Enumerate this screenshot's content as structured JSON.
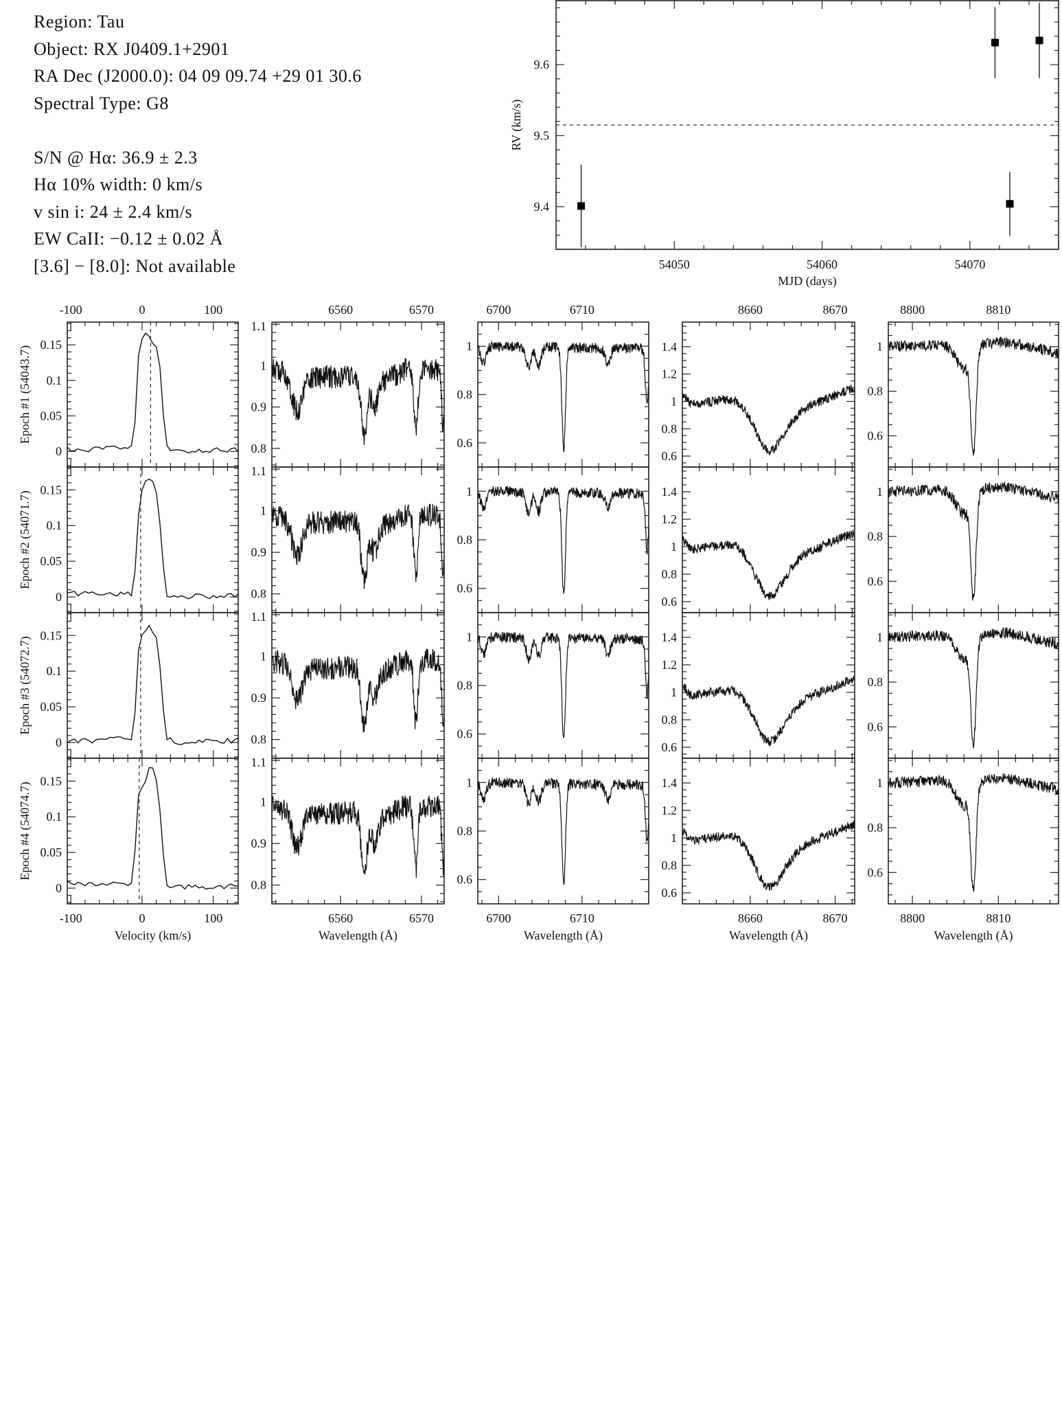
{
  "info": {
    "region": "Region: Tau",
    "object": "Object: RX J0409.1+2901",
    "radec": "RA Dec (J2000.0): 04 09 09.74 +29 01 30.6",
    "sptype": "Spectral Type: G8",
    "sn": "S/N @ Hα: 36.9 ± 2.3",
    "ha_width": "Hα 10% width: 0 km/s",
    "vsini": "v sin i: 24 ± 2.4 km/s",
    "ew_ca": "EW CaII: −0.12 ± 0.02 Å",
    "irac": "[3.6] − [8.0]: Not available"
  },
  "chart_data": [
    {
      "type": "scatter",
      "xlabel": "MJD (days)",
      "ylabel": "RV (km/s)",
      "xlim": [
        54042,
        54076
      ],
      "ylim": [
        9.34,
        9.69
      ],
      "xticks": [
        54050,
        54060,
        54070
      ],
      "yticks": [
        9.4,
        9.5,
        9.6
      ],
      "mean_line": 9.515,
      "points": [
        {
          "x": 54043.7,
          "y": 9.401,
          "yerr": 0.058
        },
        {
          "x": 54071.7,
          "y": 9.631,
          "yerr": 0.05
        },
        {
          "x": 54072.7,
          "y": 9.404,
          "yerr": 0.045
        },
        {
          "x": 54074.7,
          "y": 9.634,
          "yerr": 0.053
        }
      ],
      "grid": false
    },
    {
      "type": "line",
      "panel_grid": "4 epochs x 5 spectral windows",
      "epochs": [
        "Epoch #1 (54043.7)",
        "Epoch #2 (54071.7)",
        "Epoch #3 (54072.7)",
        "Epoch #4 (54074.7)"
      ],
      "columns": [
        {
          "xlabel": "Velocity (km/s)",
          "xlim": [
            -105,
            135
          ],
          "ylim": [
            -0.022,
            0.182
          ],
          "xticks": [
            -100,
            0,
            100
          ],
          "yticks": [
            0,
            0.05,
            0.1,
            0.15
          ],
          "rv_markers": [
            12,
            -2,
            -2,
            -4
          ],
          "profiles": [
            [
              [
                -105,
                0.003
              ],
              [
                -95,
                0.001
              ],
              [
                -15,
                0.006
              ],
              [
                -12,
                0.003
              ],
              [
                -5,
                0.135
              ],
              [
                2,
                0.168
              ],
              [
                8,
                0.165
              ],
              [
                13,
                0.157
              ],
              [
                17,
                0.147
              ],
              [
                23,
                0.147
              ],
              [
                33,
                0.008
              ],
              [
                40,
                0
              ],
              [
                135,
                0.003
              ]
            ],
            [
              [
                -105,
                0.005
              ],
              [
                -12,
                0.004
              ],
              [
                -4,
                0.13
              ],
              [
                2,
                0.16
              ],
              [
                8,
                0.165
              ],
              [
                14,
                0.165
              ],
              [
                22,
                0.14
              ],
              [
                33,
                0.005
              ],
              [
                45,
                0
              ],
              [
                135,
                0.002
              ]
            ],
            [
              [
                -105,
                0.001
              ],
              [
                -12,
                0.006
              ],
              [
                -4,
                0.147
              ],
              [
                4,
                0.155
              ],
              [
                10,
                0.164
              ],
              [
                17,
                0.15
              ],
              [
                22,
                0.145
              ],
              [
                33,
                0.007
              ],
              [
                45,
                0
              ],
              [
                135,
                0.003
              ]
            ],
            [
              [
                -105,
                0.008
              ],
              [
                -13,
                0.004
              ],
              [
                -4,
                0.147
              ],
              [
                2,
                0.138
              ],
              [
                10,
                0.169
              ],
              [
                17,
                0.168
              ],
              [
                22,
                0.14
              ],
              [
                27,
                0.09
              ],
              [
                33,
                0.001
              ],
              [
                135,
                0.003
              ]
            ]
          ]
        },
        {
          "xlabel": "Wavelength (Å)",
          "xlim": [
            6551.5,
            6572.8
          ],
          "ylim": [
            0.755,
            1.105
          ],
          "xticks": [
            6560,
            6570
          ],
          "yticks": [
            0.8,
            0.9,
            1,
            1.1
          ],
          "continuum": [
            [
              6551.5,
              0.99
            ],
            [
              6556,
              0.97
            ],
            [
              6562,
              0.975
            ],
            [
              6564,
              0.95
            ],
            [
              6568,
              0.99
            ],
            [
              6572.8,
              0.99
            ]
          ],
          "lines": [
            {
              "center": 6554.6,
              "min": 0.89,
              "width": 0.6
            },
            {
              "center": 6562.9,
              "min": 0.83,
              "width": 0.35
            },
            {
              "center": 6564.2,
              "min": 0.9,
              "width": 0.4
            },
            {
              "center": 6569.3,
              "min": 0.84,
              "width": 0.25
            },
            {
              "center": 6572.7,
              "min": 0.85,
              "width": 0.2
            }
          ],
          "noise": 0.028
        },
        {
          "xlabel": "Wavelength (Å)",
          "xlim": [
            6697.5,
            6718
          ],
          "ylim": [
            0.5,
            1.1
          ],
          "xticks": [
            6700,
            6710
          ],
          "yticks": [
            0.6,
            0.8,
            1
          ],
          "continuum": [
            [
              6697.5,
              1.0
            ],
            [
              6718,
              0.99
            ]
          ],
          "lines": [
            {
              "center": 6698.2,
              "min": 0.93,
              "width": 0.3
            },
            {
              "center": 6703.6,
              "min": 0.91,
              "width": 0.3
            },
            {
              "center": 6704.8,
              "min": 0.92,
              "width": 0.3
            },
            {
              "center": 6707.8,
              "min": 0.58,
              "width": 0.22
            },
            {
              "center": 6713.1,
              "min": 0.93,
              "width": 0.3
            },
            {
              "center": 6717.8,
              "min": 0.76,
              "width": 0.2
            }
          ],
          "noise": 0.022
        },
        {
          "xlabel": "Wavelength (Å)",
          "xlim": [
            8652,
            8672.3
          ],
          "ylim": [
            0.52,
            1.58
          ],
          "xticks": [
            8660,
            8670
          ],
          "yticks": [
            0.6,
            0.8,
            1,
            1.2,
            1.4
          ],
          "continuum": [
            [
              8652,
              1.05
            ],
            [
              8653,
              0.98
            ],
            [
              8658,
              1.02
            ],
            [
              8665,
              0.92
            ],
            [
              8672.3,
              1.1
            ]
          ],
          "lines": [
            {
              "center": 8662.2,
              "min": 0.64,
              "width": 1.6
            }
          ],
          "noise": 0.035
        },
        {
          "xlabel": "Wavelength (Å)",
          "xlim": [
            8797.2,
            8817
          ],
          "ylim": [
            0.46,
            1.11
          ],
          "xticks": [
            8800,
            8810
          ],
          "yticks": [
            0.6,
            0.8,
            1
          ],
          "continuum": [
            [
              8797.2,
              1.0
            ],
            [
              8811,
              1.02
            ],
            [
              8817,
              0.97
            ]
          ],
          "lines": [
            {
              "center": 8806.0,
              "min": 0.9,
              "width": 0.9
            },
            {
              "center": 8807.1,
              "min": 0.57,
              "width": 0.3
            }
          ],
          "noise": 0.025
        }
      ]
    }
  ]
}
